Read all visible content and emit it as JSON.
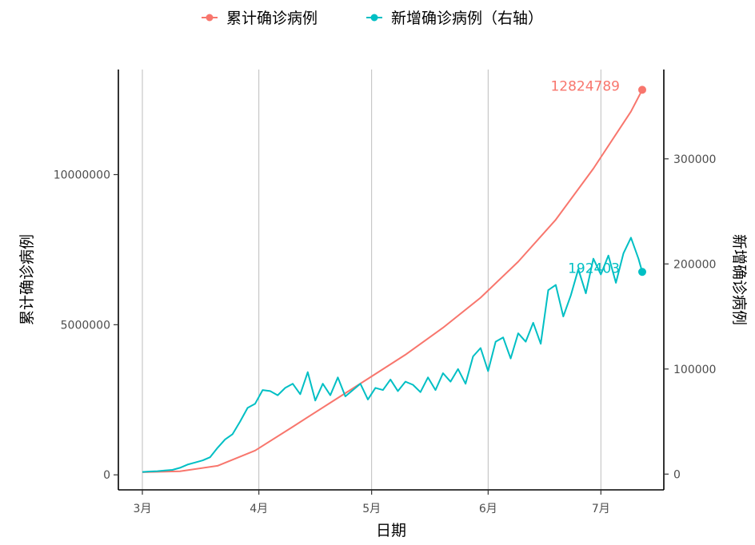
{
  "chart_data": {
    "type": "line",
    "title": "",
    "xlabel": "日期",
    "ylabel_left": "累计确诊病例",
    "ylabel_right": "新增确诊病例",
    "x_start": "2020-03-01",
    "x_end": "2020-07-12",
    "x_ticks": [
      "3月",
      "4月",
      "5月",
      "6月",
      "7月"
    ],
    "x_tick_dates": [
      "2020-03-01",
      "2020-04-01",
      "2020-05-01",
      "2020-06-01",
      "2020-07-01"
    ],
    "y_left_ticks": [
      0,
      5000000,
      10000000
    ],
    "y_left_tick_labels": [
      "0",
      "5000000",
      "10000000"
    ],
    "y_left_range": [
      -500000,
      13500000
    ],
    "y_right_ticks": [
      0,
      100000,
      200000,
      300000
    ],
    "y_right_tick_labels": [
      "0",
      "100000",
      "200000",
      "300000"
    ],
    "y_right_range": [
      -15000,
      385000
    ],
    "grid": "vertical-major",
    "legend_position": "top",
    "series": [
      {
        "name": "累计确诊病例",
        "axis": "left",
        "color": "#F8766D",
        "end_label": "12824789",
        "points": [
          [
            "2020-03-01",
            88000
          ],
          [
            "2020-03-11",
            120000
          ],
          [
            "2020-03-21",
            300000
          ],
          [
            "2020-03-31",
            810000
          ],
          [
            "2020-04-10",
            1600000
          ],
          [
            "2020-04-20",
            2400000
          ],
          [
            "2020-04-30",
            3200000
          ],
          [
            "2020-05-10",
            4000000
          ],
          [
            "2020-05-20",
            4900000
          ],
          [
            "2020-05-30",
            5900000
          ],
          [
            "2020-06-09",
            7100000
          ],
          [
            "2020-06-19",
            8500000
          ],
          [
            "2020-06-29",
            10200000
          ],
          [
            "2020-07-09",
            12100000
          ],
          [
            "2020-07-12",
            12824789
          ]
        ]
      },
      {
        "name": "新增确诊病例（右轴）",
        "axis": "right",
        "color": "#00BFC4",
        "end_label": "192403",
        "points": [
          [
            "2020-03-01",
            2000
          ],
          [
            "2020-03-03",
            2500
          ],
          [
            "2020-03-05",
            2800
          ],
          [
            "2020-03-07",
            3500
          ],
          [
            "2020-03-09",
            4000
          ],
          [
            "2020-03-11",
            6000
          ],
          [
            "2020-03-13",
            9000
          ],
          [
            "2020-03-15",
            11000
          ],
          [
            "2020-03-17",
            13000
          ],
          [
            "2020-03-19",
            16000
          ],
          [
            "2020-03-21",
            25000
          ],
          [
            "2020-03-23",
            33000
          ],
          [
            "2020-03-25",
            38000
          ],
          [
            "2020-03-27",
            50000
          ],
          [
            "2020-03-29",
            63000
          ],
          [
            "2020-03-31",
            67000
          ],
          [
            "2020-04-02",
            80000
          ],
          [
            "2020-04-04",
            79000
          ],
          [
            "2020-04-06",
            75000
          ],
          [
            "2020-04-08",
            82000
          ],
          [
            "2020-04-10",
            86000
          ],
          [
            "2020-04-12",
            76000
          ],
          [
            "2020-04-14",
            97000
          ],
          [
            "2020-04-16",
            70000
          ],
          [
            "2020-04-18",
            86000
          ],
          [
            "2020-04-20",
            75000
          ],
          [
            "2020-04-22",
            92000
          ],
          [
            "2020-04-24",
            74000
          ],
          [
            "2020-04-26",
            80000
          ],
          [
            "2020-04-28",
            86000
          ],
          [
            "2020-04-30",
            71000
          ],
          [
            "2020-05-02",
            82000
          ],
          [
            "2020-05-04",
            80000
          ],
          [
            "2020-05-06",
            90000
          ],
          [
            "2020-05-08",
            79000
          ],
          [
            "2020-05-10",
            88000
          ],
          [
            "2020-05-12",
            85000
          ],
          [
            "2020-05-14",
            78000
          ],
          [
            "2020-05-16",
            92000
          ],
          [
            "2020-05-18",
            80000
          ],
          [
            "2020-05-20",
            96000
          ],
          [
            "2020-05-22",
            88000
          ],
          [
            "2020-05-24",
            100000
          ],
          [
            "2020-05-26",
            86000
          ],
          [
            "2020-05-28",
            112000
          ],
          [
            "2020-05-30",
            120000
          ],
          [
            "2020-06-01",
            98000
          ],
          [
            "2020-06-03",
            126000
          ],
          [
            "2020-06-05",
            130000
          ],
          [
            "2020-06-07",
            110000
          ],
          [
            "2020-06-09",
            134000
          ],
          [
            "2020-06-11",
            126000
          ],
          [
            "2020-06-13",
            144000
          ],
          [
            "2020-06-15",
            124000
          ],
          [
            "2020-06-17",
            175000
          ],
          [
            "2020-06-19",
            180000
          ],
          [
            "2020-06-21",
            150000
          ],
          [
            "2020-06-23",
            170000
          ],
          [
            "2020-06-25",
            195000
          ],
          [
            "2020-06-27",
            172000
          ],
          [
            "2020-06-29",
            205000
          ],
          [
            "2020-07-01",
            190000
          ],
          [
            "2020-07-03",
            208000
          ],
          [
            "2020-07-05",
            182000
          ],
          [
            "2020-07-07",
            210000
          ],
          [
            "2020-07-09",
            225000
          ],
          [
            "2020-07-11",
            205000
          ],
          [
            "2020-07-12",
            192403
          ]
        ]
      }
    ]
  }
}
